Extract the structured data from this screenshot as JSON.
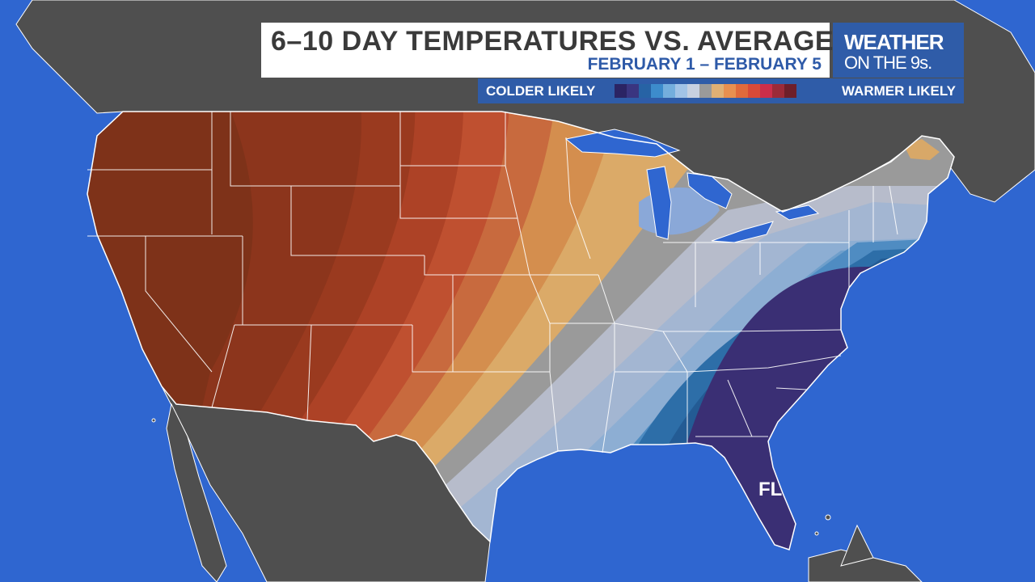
{
  "header": {
    "title": "6–10 DAY TEMPERATURES VS. AVERAGE",
    "subtitle": "FEBRUARY 1 – FEBRUARY 5"
  },
  "brand": {
    "line1": "WEATHER",
    "line2": "ON THE 9s."
  },
  "legend": {
    "left_label": "COLDER LIKELY",
    "right_label": "WARMER LIKELY",
    "colors": [
      "#2b2464",
      "#3a3580",
      "#2763a5",
      "#3d8ccc",
      "#74aedd",
      "#a2c3e6",
      "#c7d0e0",
      "#9a9a9a",
      "#e0b074",
      "#e89050",
      "#e06a3c",
      "#d84a38",
      "#cc2e4a",
      "#9c2a38",
      "#6e1f2a"
    ]
  },
  "map_labels": {
    "state_fl": "FL"
  },
  "colors": {
    "ocean": "#2f66d0",
    "land": "#4f4f4f"
  }
}
